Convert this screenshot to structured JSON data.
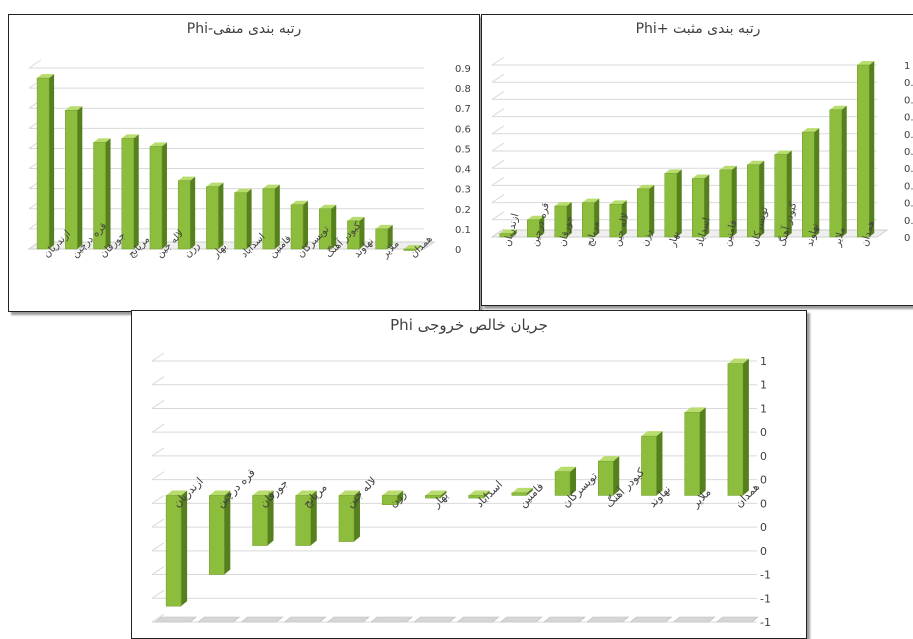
{
  "colors": {
    "bar_front": "#8cbd3c",
    "bar_side": "#56801e",
    "bar_top": "#b9dc6e",
    "grid": "#d9d9d9",
    "text": "#404040"
  },
  "chart_data": [
    {
      "type": "bar",
      "title": "رتبه بندی منفی-Phi",
      "categories": [
        "ازندریان",
        "قره درچین",
        "جورقان",
        "مریانج",
        "لاله جین",
        "رزن",
        "بهار",
        "اسداباد",
        "فامنین",
        "تویسرکان",
        "کبودر آهنگ",
        "نهاوند",
        "ملایر",
        "همدان"
      ],
      "values": [
        0.85,
        0.69,
        0.53,
        0.55,
        0.51,
        0.34,
        0.31,
        0.28,
        0.3,
        0.22,
        0.2,
        0.14,
        0.1,
        0.0
      ],
      "ylim": [
        0,
        0.9
      ],
      "yticks": [
        "0",
        "0.1",
        "0.2",
        "0.3",
        "0.4",
        "0.5",
        "0.6",
        "0.7",
        "0.8",
        "0.9"
      ],
      "grid": true,
      "legend": "none"
    },
    {
      "type": "bar",
      "title": "رتبه بندی مثبت +Phi",
      "categories": [
        "ازندریان",
        "قره درچین",
        "جورقان",
        "مریانج",
        "لاله جین",
        "رزن",
        "بهار",
        "اسداباد",
        "فامنین",
        "تویسرکان",
        "کبودر آهنگ",
        "نهاوند",
        "ملایر",
        "همدان"
      ],
      "values": [
        0.02,
        0.1,
        0.18,
        0.2,
        0.19,
        0.28,
        0.37,
        0.34,
        0.39,
        0.42,
        0.48,
        0.61,
        0.74,
        1.0
      ],
      "ylim": [
        0,
        1.0
      ],
      "yticks": [
        "0",
        "0.",
        "0.",
        "0.",
        "0.",
        "0.",
        "0.",
        "0.",
        "0.",
        "0.",
        "1"
      ],
      "grid": true,
      "legend": "none"
    },
    {
      "type": "bar",
      "title": "جریان خالص خروجی Phi",
      "categories": [
        "ازندریان",
        "قره درچین",
        "جورقان",
        "مریانج",
        "لاله جین",
        "رزن",
        "بهار",
        "اسداباد",
        "فامنین",
        "تویسرکان",
        "کبودر آهنگ",
        "نهاوند",
        "ملایر",
        "همدان"
      ],
      "values": [
        -0.84,
        -0.6,
        -0.38,
        -0.38,
        -0.35,
        -0.07,
        -0.02,
        -0.02,
        0.02,
        0.18,
        0.26,
        0.45,
        0.63,
        1.0
      ],
      "ylim": [
        -0.96,
        1.02
      ],
      "yticks": [
        "-1",
        "-1",
        "-1",
        "0",
        "0",
        "0",
        "0",
        "0",
        "0",
        "1",
        "1",
        "1"
      ],
      "grid": true,
      "legend": "none"
    }
  ]
}
